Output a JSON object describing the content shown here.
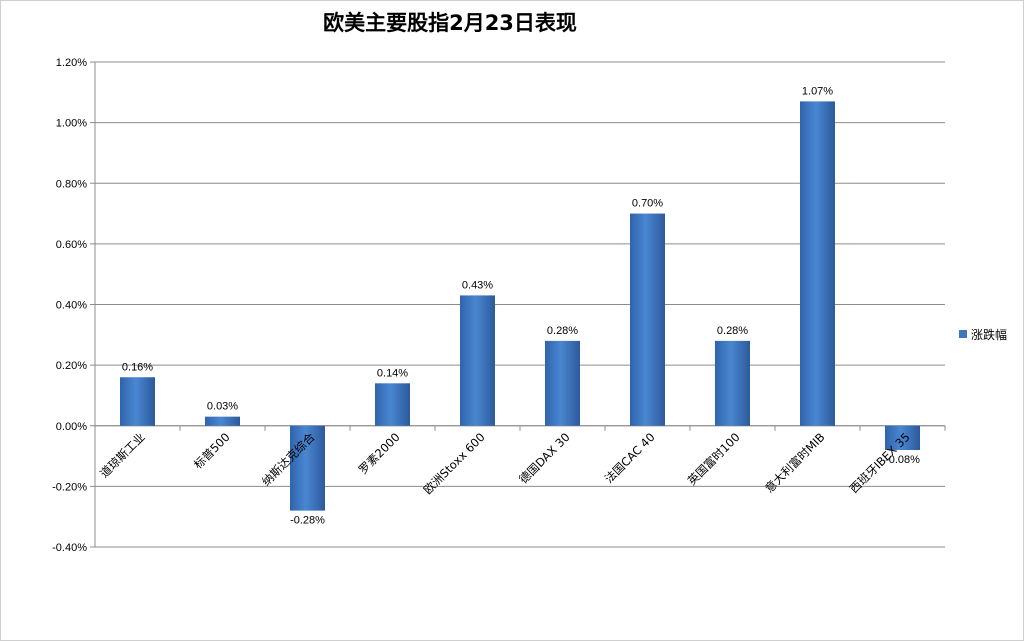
{
  "chart_data": {
    "type": "bar",
    "title": "欧美主要股指2月23日表现",
    "categories": [
      "道琼斯工业",
      "标普500",
      "纳斯达克综合",
      "罗素2000",
      "欧洲Stoxx 600",
      "德国DAX 30",
      "法国CAC 40",
      "英国富时100",
      "意大利富时MIB",
      "西班牙IBEX 35"
    ],
    "series": [
      {
        "name": "涨跌幅",
        "values": [
          0.16,
          0.03,
          -0.28,
          0.14,
          0.43,
          0.28,
          0.7,
          0.28,
          1.07,
          -0.08
        ],
        "labels": [
          "0.16%",
          "0.03%",
          "-0.28%",
          "0.14%",
          "0.43%",
          "0.28%",
          "0.70%",
          "0.28%",
          "1.07%",
          "-0.08%"
        ],
        "color": "#3f76c0"
      }
    ],
    "ylim": [
      -0.4,
      1.2
    ],
    "yticks": [
      -0.4,
      -0.2,
      0.0,
      0.2,
      0.4,
      0.6,
      0.8,
      1.0,
      1.2
    ],
    "ytick_labels": [
      "-0.40%",
      "-0.20%",
      "0.00%",
      "0.20%",
      "0.40%",
      "0.60%",
      "0.80%",
      "1.00%",
      "1.20%"
    ],
    "grid": true,
    "legend_position": "right"
  }
}
